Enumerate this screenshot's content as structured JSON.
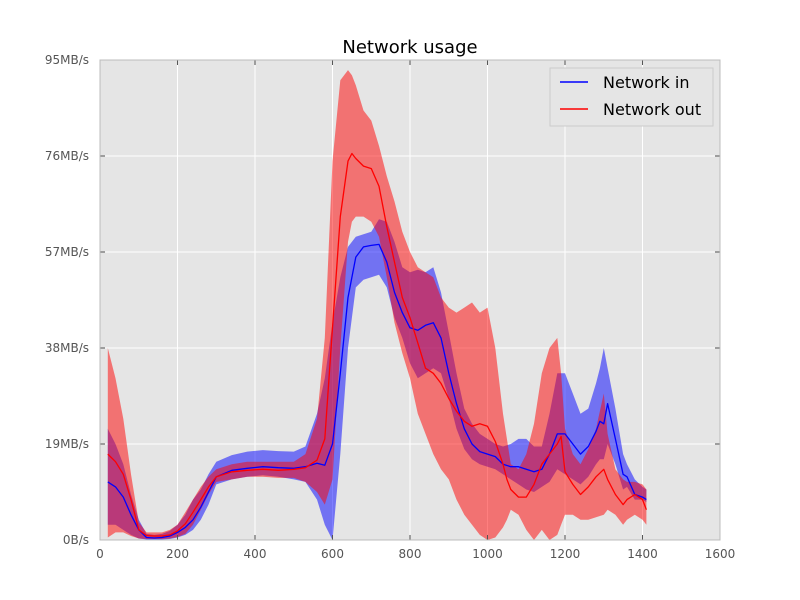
{
  "chart_data": {
    "type": "line",
    "title": "Network usage",
    "xlabel": "",
    "ylabel": "",
    "xlim": [
      0,
      1600
    ],
    "ylim": [
      0,
      95
    ],
    "x_ticks": [
      0,
      200,
      400,
      600,
      800,
      1000,
      1200,
      1400,
      1600
    ],
    "y_ticks": [
      0,
      19,
      38,
      57,
      76,
      95
    ],
    "y_tick_labels": [
      "0B/s",
      "19MB/s",
      "38MB/s",
      "57MB/s",
      "76MB/s",
      "95MB/s"
    ],
    "grid": true,
    "legend_position": "top-right",
    "background": "#e5e5e5",
    "series": [
      {
        "name": "Network in",
        "color": "#0000ff",
        "fill_color": "#0000ff",
        "x": [
          20,
          40,
          60,
          80,
          100,
          120,
          140,
          160,
          180,
          200,
          220,
          240,
          260,
          280,
          300,
          340,
          380,
          420,
          460,
          500,
          530,
          560,
          580,
          600,
          620,
          640,
          660,
          680,
          700,
          720,
          740,
          760,
          780,
          800,
          820,
          840,
          860,
          880,
          900,
          920,
          940,
          960,
          980,
          1000,
          1020,
          1040,
          1060,
          1080,
          1100,
          1120,
          1140,
          1160,
          1180,
          1200,
          1220,
          1240,
          1260,
          1280,
          1290,
          1300,
          1310,
          1330,
          1350,
          1360,
          1380,
          1400,
          1410
        ],
        "values": [
          11.5,
          10.5,
          8.5,
          5,
          2,
          0.5,
          0.4,
          0.5,
          0.8,
          1.5,
          2.5,
          4,
          6.5,
          9.5,
          12.5,
          13.8,
          14.2,
          14.5,
          14.3,
          14.2,
          14.5,
          15.2,
          14.8,
          19,
          33,
          48,
          56,
          58,
          58.3,
          58.5,
          55,
          49,
          45,
          42,
          41.5,
          42.5,
          43,
          40,
          33,
          27,
          22,
          19,
          17.5,
          17,
          16.5,
          15,
          14.5,
          14.5,
          14,
          13.5,
          14,
          17,
          21,
          21,
          19,
          17,
          18.5,
          21.5,
          23.5,
          23,
          27,
          20,
          13,
          12.5,
          9,
          8.5,
          8
        ],
        "upper": [
          22,
          19,
          15,
          9,
          4,
          1.2,
          1,
          1.2,
          1.8,
          3,
          5,
          8,
          10,
          13,
          15.5,
          16.8,
          17.5,
          17.8,
          17.6,
          17.5,
          18.5,
          25,
          32,
          43,
          52,
          58,
          60,
          60.5,
          61,
          63.5,
          63,
          59,
          54,
          53,
          53.5,
          53,
          54,
          49,
          41,
          33,
          26,
          23,
          21,
          20,
          19,
          18.5,
          19,
          20,
          20,
          18.5,
          18.5,
          25,
          33,
          33,
          29,
          25,
          26,
          31,
          34,
          38,
          34,
          26,
          17,
          15,
          12,
          10.5,
          10
        ],
        "lower": [
          3,
          3,
          2,
          1,
          0.3,
          0.1,
          0.1,
          0.1,
          0.2,
          0.5,
          1,
          2,
          4,
          7,
          11,
          12,
          12.5,
          12.8,
          12.5,
          12,
          11.5,
          8,
          3,
          0,
          17,
          38,
          50,
          51.5,
          52,
          52.5,
          50,
          44,
          40,
          35,
          32,
          33,
          34,
          33,
          28,
          22,
          18,
          16,
          15,
          14.5,
          14,
          13,
          12,
          11,
          10,
          9.5,
          10.5,
          11.5,
          14,
          13,
          12,
          11,
          12.5,
          15,
          16,
          16,
          19,
          15,
          10,
          10.5,
          8,
          8,
          7.5
        ]
      },
      {
        "name": "Network out",
        "color": "#ff0000",
        "fill_color": "#ff0000",
        "x": [
          20,
          40,
          60,
          80,
          100,
          120,
          140,
          160,
          180,
          200,
          220,
          240,
          260,
          280,
          300,
          340,
          380,
          420,
          460,
          500,
          530,
          560,
          580,
          600,
          620,
          640,
          650,
          660,
          680,
          700,
          720,
          740,
          760,
          780,
          800,
          820,
          840,
          860,
          880,
          900,
          920,
          940,
          960,
          980,
          1000,
          1020,
          1040,
          1050,
          1060,
          1080,
          1100,
          1120,
          1140,
          1160,
          1180,
          1190,
          1200,
          1220,
          1240,
          1260,
          1280,
          1300,
          1310,
          1330,
          1350,
          1360,
          1380,
          1400,
          1410
        ],
        "values": [
          17,
          15.5,
          13,
          8,
          2,
          0.9,
          0.8,
          0.8,
          1,
          1.8,
          3.2,
          5.5,
          8,
          10.5,
          12.5,
          13.5,
          13.8,
          14,
          13.8,
          14,
          14.3,
          15.8,
          20,
          42,
          64,
          75,
          76.5,
          75.5,
          74,
          73.5,
          70,
          62,
          55,
          48,
          44,
          39,
          34,
          33,
          31,
          28,
          25.5,
          23.5,
          22.5,
          23,
          22.5,
          19.5,
          15,
          12,
          10,
          8.5,
          8.5,
          11,
          15,
          17,
          19,
          20.5,
          13.5,
          11,
          9,
          10.5,
          12.5,
          14,
          12,
          9,
          7,
          8,
          9,
          8,
          6
        ],
        "upper": [
          38,
          32,
          24,
          13,
          3.5,
          1.5,
          1.5,
          1.5,
          2,
          3,
          5.5,
          8,
          10.5,
          12.5,
          14,
          15,
          15.5,
          15.5,
          15.5,
          15.5,
          17,
          24,
          40,
          75,
          91,
          93,
          92,
          90,
          85,
          83,
          78,
          72,
          67,
          61,
          57,
          54,
          53,
          52,
          48,
          46,
          45,
          46,
          47,
          45,
          46,
          38,
          25,
          20,
          15,
          14,
          17,
          23,
          33,
          38,
          40,
          33,
          22,
          17,
          15,
          18,
          22,
          29,
          21,
          14,
          12,
          11.5,
          11.5,
          11,
          10
        ],
        "lower": [
          0.5,
          1.5,
          1.5,
          0.8,
          0.3,
          0.2,
          0.2,
          0.2,
          0.3,
          0.6,
          1.2,
          3,
          6,
          9,
          11.5,
          12,
          12.5,
          12.5,
          12.3,
          12.3,
          11.5,
          9.5,
          7,
          12,
          38,
          59,
          63,
          64,
          64,
          63,
          60,
          52,
          43,
          37,
          32,
          25,
          21,
          17,
          14,
          12,
          8,
          5,
          3,
          1,
          0,
          0.5,
          2.5,
          4,
          6,
          5,
          2,
          0,
          2,
          0,
          1,
          3,
          5,
          5,
          4,
          4,
          4.5,
          5,
          6,
          5,
          3,
          4,
          5,
          4,
          3
        ]
      }
    ]
  }
}
